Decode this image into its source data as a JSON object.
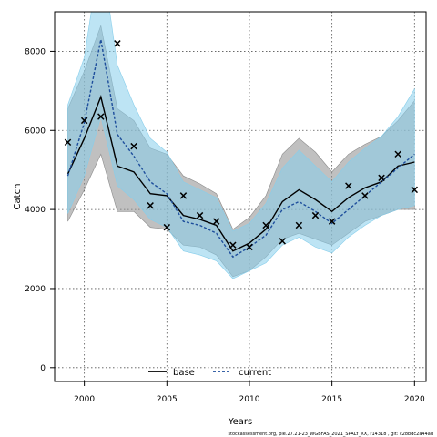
{
  "chart_data": {
    "type": "line",
    "title": "",
    "xlabel": "Years",
    "ylabel": "Catch",
    "xlim": [
      1998.2,
      2020.7
    ],
    "ylim": [
      -350,
      9000
    ],
    "x_ticks": [
      2000,
      2005,
      2010,
      2015,
      2020
    ],
    "y_ticks": [
      0,
      2000,
      4000,
      6000,
      8000
    ],
    "grid": true,
    "legend_position": "bottom-center",
    "years": [
      1999,
      2000,
      2001,
      2002,
      2003,
      2004,
      2005,
      2006,
      2007,
      2008,
      2009,
      2010,
      2011,
      2012,
      2013,
      2014,
      2015,
      2016,
      2017,
      2018,
      2019,
      2020
    ],
    "series": [
      {
        "name": "base",
        "line_color": "#000000",
        "band_color": "#8c8c8c",
        "values": [
          4900,
          5800,
          6850,
          5100,
          4950,
          4400,
          4350,
          3850,
          3750,
          3600,
          2950,
          3150,
          3500,
          4200,
          4500,
          4250,
          3950,
          4300,
          4550,
          4700,
          5100,
          5200
        ],
        "lower": [
          3700,
          4500,
          5400,
          3950,
          3950,
          3550,
          3500,
          3100,
          3050,
          2850,
          2300,
          2450,
          2800,
          3250,
          3400,
          3250,
          3100,
          3400,
          3700,
          3850,
          4000,
          4000
        ],
        "upper": [
          6550,
          7500,
          8650,
          6550,
          6250,
          5550,
          5400,
          4850,
          4650,
          4400,
          3500,
          3800,
          4350,
          5400,
          5800,
          5450,
          4950,
          5400,
          5650,
          5850,
          6250,
          6750
        ]
      },
      {
        "name": "current",
        "line_color": "#1e4e9c",
        "band_color": "#87ceeb",
        "values": [
          4850,
          6200,
          8300,
          5900,
          5350,
          4700,
          4400,
          3700,
          3600,
          3400,
          2800,
          3050,
          3350,
          4000,
          4200,
          3950,
          3650,
          4000,
          4350,
          4700,
          5050,
          5400
        ],
        "lower": [
          3900,
          4850,
          6350,
          4600,
          4250,
          3750,
          3550,
          2950,
          2850,
          2700,
          2250,
          2450,
          2650,
          3100,
          3300,
          3050,
          2900,
          3300,
          3600,
          3850,
          4000,
          4100
        ],
        "upper": [
          6650,
          7850,
          10600,
          7650,
          6650,
          5800,
          5450,
          4700,
          4500,
          4300,
          3450,
          3650,
          4150,
          5050,
          5500,
          5100,
          4700,
          5200,
          5550,
          5850,
          6350,
          7050
        ]
      }
    ],
    "observations": {
      "marker": "x",
      "values": [
        5700,
        6250,
        6350,
        8200,
        5600,
        4100,
        3550,
        4350,
        3850,
        3700,
        3100,
        3050,
        3600,
        3200,
        3600,
        3850,
        3700,
        4600,
        4350,
        4800,
        5400,
        4500
      ]
    },
    "credit": "stockassessment.org, ple.27.21-23_WGBFAS_2021_SPALY_XX, r14318 , git: c28bdc2a44ad"
  }
}
